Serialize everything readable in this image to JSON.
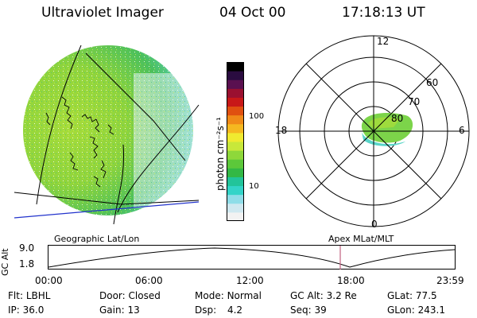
{
  "header": {
    "instrument": "Ultraviolet Imager",
    "date": "04 Oct 00",
    "time": "17:18:13 UT"
  },
  "colorbar": {
    "unit_label": "photon cm⁻²s⁻¹",
    "tick_labels": [
      "100",
      "10"
    ],
    "colors": [
      "#f2f2f2",
      "#cfe8f0",
      "#8fdde8",
      "#33d4c8",
      "#22c49a",
      "#33b845",
      "#5cc83a",
      "#8ed83a",
      "#c8e83a",
      "#f0ea30",
      "#f5b820",
      "#f08a18",
      "#e05010",
      "#c81818",
      "#9a1030",
      "#5a1050",
      "#2a0c40",
      "#000000"
    ]
  },
  "geo_panel": {
    "label": "Geographic Lat/Lon"
  },
  "polar_panel": {
    "label": "Apex MLat/MLT",
    "mlt_labels": {
      "top": "12",
      "bottom": "0",
      "left": "18",
      "right": "6"
    },
    "lat_labels": [
      "60",
      "70",
      "80"
    ]
  },
  "altitude_plot": {
    "ylabel": "GC Alt",
    "yticks": [
      "9.0",
      "1.8"
    ],
    "xticks": [
      "00:00",
      "06:00",
      "12:00",
      "18:00",
      "23:59"
    ],
    "marker_time": "17:18",
    "marker_color": "#c06080"
  },
  "status": {
    "flt": {
      "label": "Flt:",
      "value": "LBHL"
    },
    "ip": {
      "label": "IP:",
      "value": "36.0"
    },
    "door": {
      "label": "Door:",
      "value": "Closed"
    },
    "gain": {
      "label": "Gain:",
      "value": "13"
    },
    "mode": {
      "label": "Mode:",
      "value": "Normal"
    },
    "dsp": {
      "label": "Dsp:",
      "value": "4.2"
    },
    "gcalt": {
      "label": "GC Alt:",
      "value": "3.2 Re"
    },
    "seq": {
      "label": "Seq:",
      "value": "39"
    },
    "glat": {
      "label": "GLat:",
      "value": "77.5"
    },
    "glon": {
      "label": "GLon:",
      "value": "243.1"
    }
  }
}
